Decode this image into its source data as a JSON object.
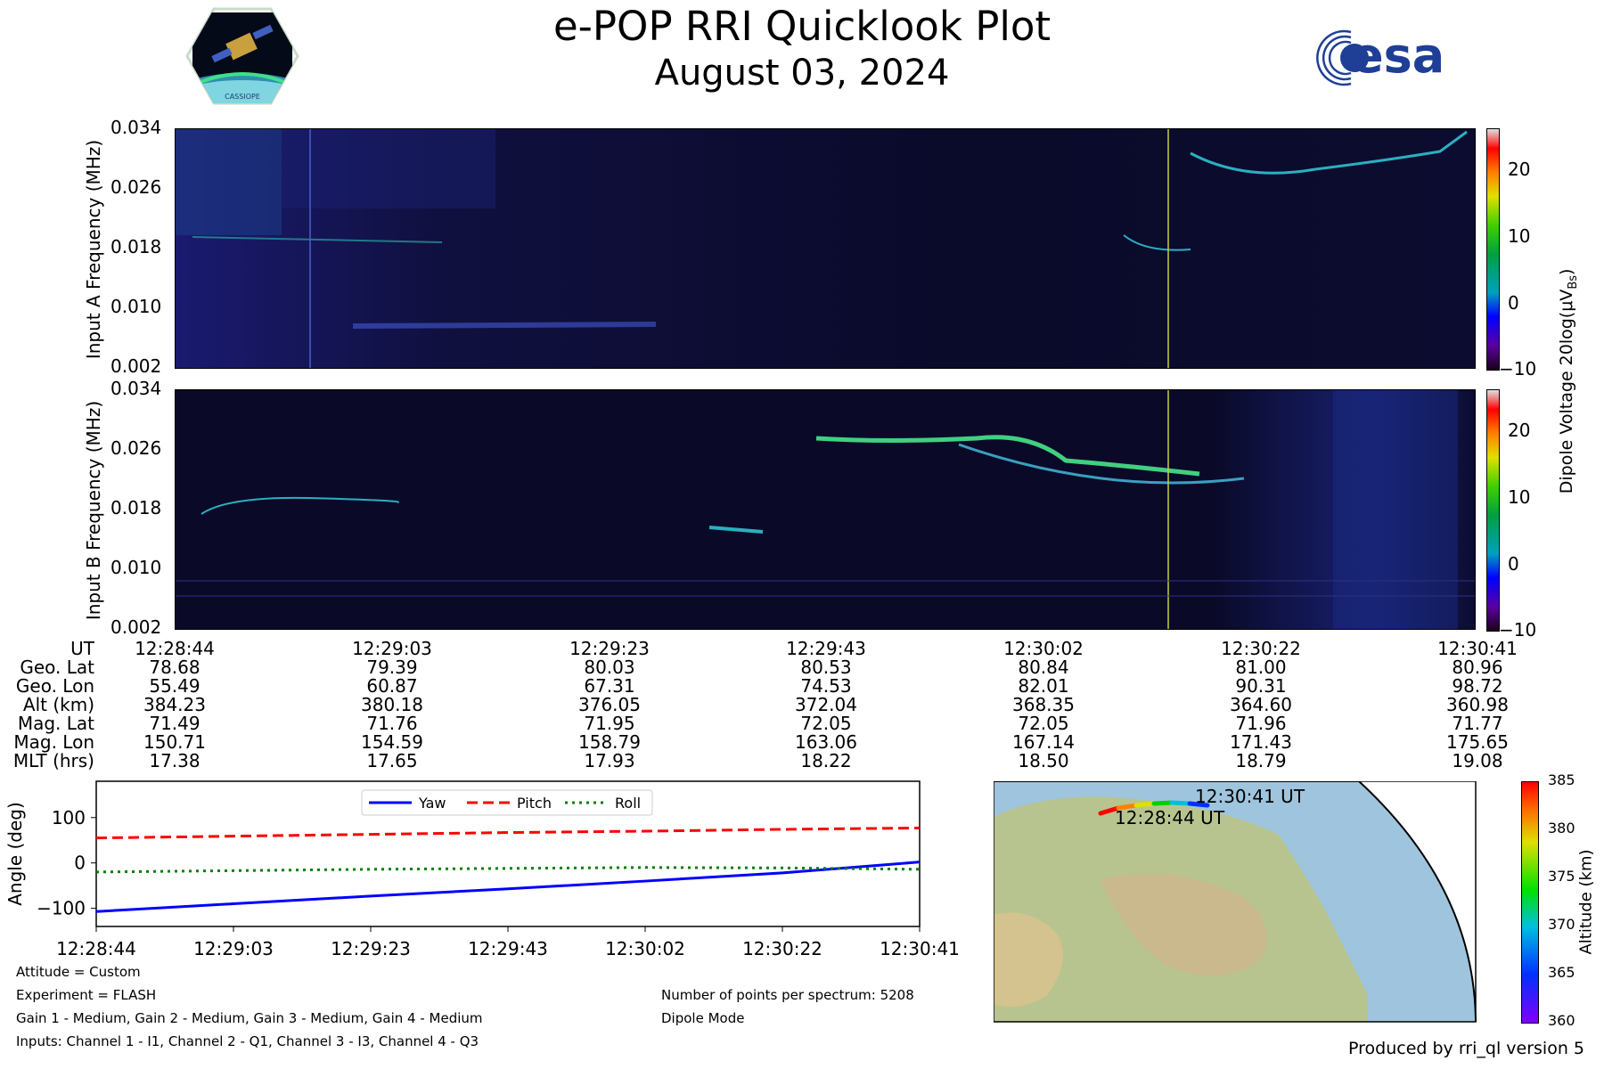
{
  "header": {
    "title": "e-POP RRI Quicklook Plot",
    "date": "August 03, 2024",
    "left_logo_text": "CASSIOPE",
    "right_logo_text": "esa"
  },
  "spectrogram_a": {
    "ylabel": "Input A Frequency (MHz)",
    "yticks": [
      "0.034",
      "0.026",
      "0.018",
      "0.010",
      "0.002"
    ]
  },
  "spectrogram_b": {
    "ylabel": "Input B Frequency (MHz)",
    "yticks": [
      "0.034",
      "0.026",
      "0.018",
      "0.010",
      "0.002"
    ]
  },
  "colorbar_voltage": {
    "label": "Dipole Voltage 20log(μV",
    "label_sub": "Bs",
    "label_end": ")",
    "ticks": [
      "20",
      "10",
      "0",
      "−10"
    ]
  },
  "ephemeris": {
    "row_labels": [
      "UT",
      "Geo. Lat",
      "Geo. Lon",
      "Alt (km)",
      "Mag. Lat",
      "Mag. Lon",
      "MLT (hrs)"
    ],
    "columns": [
      [
        "12:28:44",
        "78.68",
        "55.49",
        "384.23",
        "71.49",
        "150.71",
        "17.38"
      ],
      [
        "12:29:03",
        "79.39",
        "60.87",
        "380.18",
        "71.76",
        "154.59",
        "17.65"
      ],
      [
        "12:29:23",
        "80.03",
        "67.31",
        "376.05",
        "71.95",
        "158.79",
        "17.93"
      ],
      [
        "12:29:43",
        "80.53",
        "74.53",
        "372.04",
        "72.05",
        "163.06",
        "18.22"
      ],
      [
        "12:30:02",
        "80.84",
        "82.01",
        "368.35",
        "72.05",
        "167.14",
        "18.50"
      ],
      [
        "12:30:22",
        "81.00",
        "90.31",
        "364.60",
        "71.96",
        "171.43",
        "18.79"
      ],
      [
        "12:30:41",
        "80.96",
        "98.72",
        "360.98",
        "71.77",
        "175.65",
        "19.08"
      ]
    ]
  },
  "chart_data": [
    {
      "type": "line",
      "ylabel": "Angle (deg)",
      "x": [
        "12:28:44",
        "12:29:03",
        "12:29:23",
        "12:29:43",
        "12:30:02",
        "12:30:22",
        "12:30:41"
      ],
      "ylim": [
        -140,
        180
      ],
      "yticks": [
        "100",
        "0",
        "−100"
      ],
      "legend_position": "top-center",
      "series": [
        {
          "name": "Yaw",
          "color": "#0000ff",
          "style": "solid",
          "values": [
            -107,
            -90,
            -73,
            -57,
            -40,
            -22,
            2
          ]
        },
        {
          "name": "Pitch",
          "color": "#ff0000",
          "style": "dashed",
          "values": [
            55,
            59,
            63,
            67,
            70,
            74,
            77
          ]
        },
        {
          "name": "Roll",
          "color": "#008000",
          "style": "dotted",
          "values": [
            -20,
            -17,
            -14,
            -12,
            -10,
            -11,
            -14
          ]
        }
      ]
    },
    {
      "type": "scatter",
      "map": true,
      "labels": [
        "12:30:41 UT",
        "12:28:44 UT"
      ],
      "colorbar_label": "Altitude (km)",
      "colorbar_ticks": [
        "385",
        "380",
        "375",
        "370",
        "365",
        "360"
      ],
      "colorbar_range": [
        360,
        385
      ]
    }
  ],
  "notes_left": [
    "Attitude = Custom",
    "Experiment = FLASH",
    "Gain 1 - Medium, Gain 2 - Medium, Gain 3 - Medium, Gain 4 - Medium",
    "Inputs: Channel 1 - I1, Channel 2 - Q1, Channel 3 - I3, Channel 4 - Q3"
  ],
  "notes_right": [
    "Number of points per spectrum: 5208",
    "Dipole Mode"
  ],
  "footer": "Produced by rri_ql version 5"
}
